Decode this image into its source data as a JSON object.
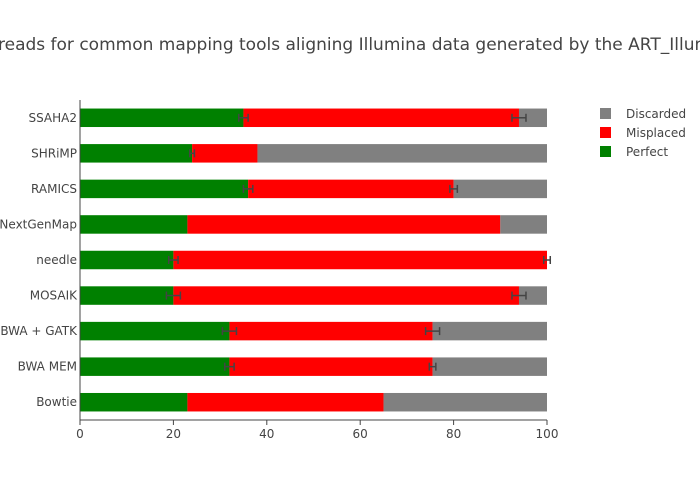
{
  "chart_data": {
    "type": "bar",
    "orientation": "horizontal",
    "stacked": true,
    "title": "reads for common mapping tools aligning Illumina data generated by the ART_Illumina si",
    "xlabel": "",
    "ylabel": "",
    "xlim": [
      0,
      100
    ],
    "xticks": [
      0,
      20,
      40,
      60,
      80,
      100
    ],
    "grid": false,
    "legend_position": "top-right",
    "categories": [
      "Bowtie",
      "BWA MEM",
      "BWA + GATK",
      "MOSAIK",
      "needle",
      "NextGenMap",
      "RAMICS",
      "SHRiMP",
      "SSAHA2"
    ],
    "series": [
      {
        "name": "Perfect",
        "color": "#008000",
        "values": [
          23,
          32,
          32,
          20,
          20,
          23,
          36,
          24,
          35
        ],
        "error": [
          null,
          1,
          1.5,
          1.5,
          1,
          null,
          1,
          0.5,
          1
        ]
      },
      {
        "name": "Misplaced",
        "color": "#ff0000",
        "values": [
          42,
          43.5,
          43.5,
          74,
          80,
          67,
          44,
          14,
          59
        ],
        "error": [
          null,
          0.7,
          1.5,
          1.5,
          0.7,
          null,
          0.8,
          null,
          1.5
        ]
      },
      {
        "name": "Discarded",
        "color": "#808080",
        "values": [
          35,
          24.5,
          24.5,
          6,
          0,
          10,
          20,
          62,
          6
        ],
        "error": [
          null,
          null,
          null,
          null,
          null,
          null,
          null,
          null,
          null
        ]
      }
    ],
    "legend_order": [
      "Discarded",
      "Misplaced",
      "Perfect"
    ]
  }
}
